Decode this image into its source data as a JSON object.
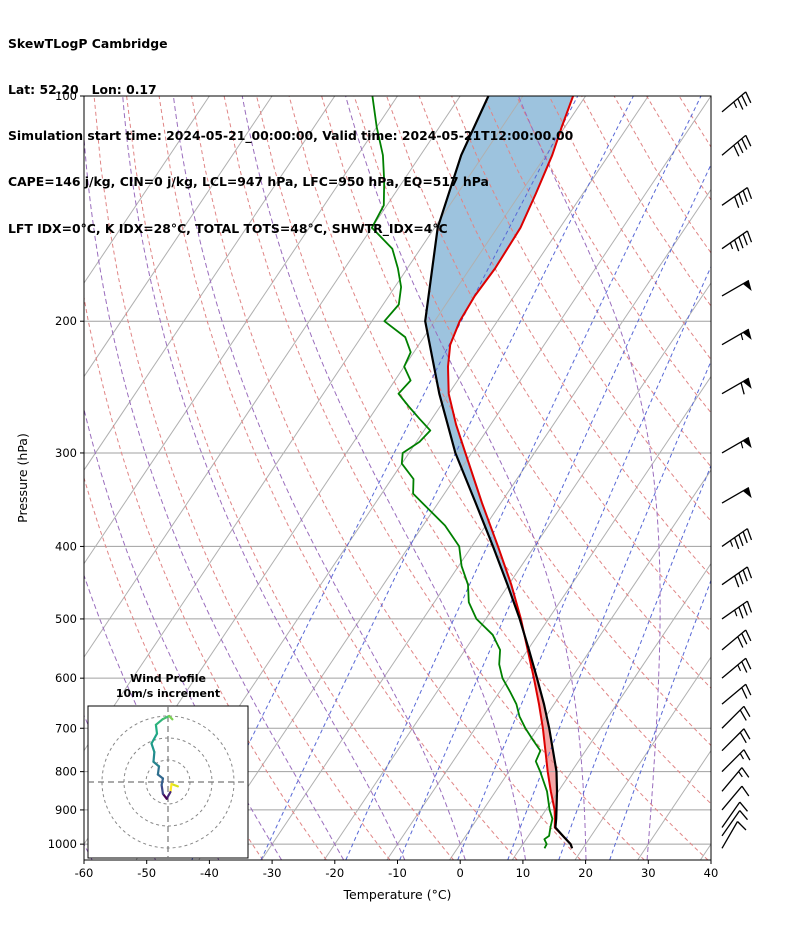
{
  "header": {
    "title": "SkewTLogP Cambridge",
    "location_line": "Lat: 52.20   Lon: 0.17",
    "time_line": "Simulation start time: 2024-05-21_00:00:00, Valid time: 2024-05-21T12:00:00.00",
    "indices_line1": "CAPE=146 j/kg, CIN=0 j/kg, LCL=947 hPa, LFC=950 hPa, EQ=517 hPa",
    "indices_line2": "LFT IDX=0°C, K IDX=28°C, TOTAL TOTS=48°C, SHWTR_IDX=4°C"
  },
  "chart_data": {
    "type": "skewt-logp",
    "station": "Cambridge",
    "lat": 52.2,
    "lon": 0.17,
    "sim_start": "2024-05-21_00:00:00",
    "valid_time": "2024-05-21T12:00:00.00",
    "indices": {
      "cape_j_per_kg": 146,
      "cin_j_per_kg": 0,
      "lcl_hpa": 947,
      "lfc_hpa": 950,
      "eq_hpa": 517,
      "lifted_index_c": 0,
      "k_index_c": 28,
      "total_totals_c": 48,
      "showalter_index_c": 4
    },
    "xlabel": "Temperature (°C)",
    "ylabel": "Pressure (hPa)",
    "x_tick_values": [
      -60,
      -50,
      -40,
      -30,
      -20,
      -10,
      0,
      10,
      20,
      30,
      40
    ],
    "x_tick_labels": [
      "-60",
      "-50",
      "-40",
      "-30",
      "-20",
      "-10",
      "0",
      "10",
      "20",
      "30",
      "40"
    ],
    "y_ticks": [
      100,
      200,
      300,
      400,
      500,
      600,
      700,
      800,
      900,
      1000
    ],
    "pressure_top": 100,
    "pressure_bottom": 1050,
    "temperature_range": [
      -60,
      40
    ],
    "skew_deg_per_decade": 80,
    "temperature_profile": [
      [
        1013,
        18.3
      ],
      [
        1000,
        17.6
      ],
      [
        975,
        15.5
      ],
      [
        950,
        13.3
      ],
      [
        925,
        12.4
      ],
      [
        900,
        11.4
      ],
      [
        850,
        8.8
      ],
      [
        800,
        6.2
      ],
      [
        750,
        3.6
      ],
      [
        700,
        0.8
      ],
      [
        650,
        -2.4
      ],
      [
        600,
        -6.0
      ],
      [
        550,
        -10.0
      ],
      [
        500,
        -14.4
      ],
      [
        450,
        -19.6
      ],
      [
        400,
        -25.8
      ],
      [
        350,
        -33.0
      ],
      [
        300,
        -41.0
      ],
      [
        275,
        -45.5
      ],
      [
        250,
        -50.0
      ],
      [
        230,
        -53.0
      ],
      [
        215,
        -55.0
      ],
      [
        200,
        -56.0
      ],
      [
        185,
        -56.3
      ],
      [
        170,
        -56.0
      ],
      [
        150,
        -56.3
      ],
      [
        135,
        -57.5
      ],
      [
        120,
        -59.0
      ],
      [
        110,
        -60.5
      ],
      [
        100,
        -62.0
      ]
    ],
    "dewpoint_profile": [
      [
        1013,
        13.9
      ],
      [
        1000,
        13.8
      ],
      [
        985,
        12.9
      ],
      [
        975,
        13.3
      ],
      [
        950,
        12.6
      ],
      [
        925,
        12.0
      ],
      [
        900,
        10.6
      ],
      [
        850,
        8.2
      ],
      [
        800,
        5.0
      ],
      [
        775,
        3.2
      ],
      [
        750,
        2.8
      ],
      [
        725,
        0.4
      ],
      [
        700,
        -2.0
      ],
      [
        675,
        -4.2
      ],
      [
        650,
        -6.0
      ],
      [
        625,
        -8.4
      ],
      [
        600,
        -11.0
      ],
      [
        575,
        -13.0
      ],
      [
        550,
        -14.4
      ],
      [
        525,
        -17.2
      ],
      [
        500,
        -21.5
      ],
      [
        475,
        -24.5
      ],
      [
        450,
        -26.5
      ],
      [
        425,
        -29.5
      ],
      [
        400,
        -32.0
      ],
      [
        375,
        -36.5
      ],
      [
        350,
        -42.5
      ],
      [
        340,
        -45.0
      ],
      [
        325,
        -46.5
      ],
      [
        310,
        -50.0
      ],
      [
        300,
        -51.0
      ],
      [
        290,
        -49.5
      ],
      [
        280,
        -49.0
      ],
      [
        270,
        -52.0
      ],
      [
        260,
        -55.0
      ],
      [
        250,
        -58.0
      ],
      [
        240,
        -57.5
      ],
      [
        230,
        -60.0
      ],
      [
        220,
        -60.5
      ],
      [
        210,
        -63.0
      ],
      [
        200,
        -68.0
      ],
      [
        190,
        -67.5
      ],
      [
        180,
        -69.0
      ],
      [
        170,
        -71.5
      ],
      [
        160,
        -74.5
      ],
      [
        150,
        -80.0
      ],
      [
        140,
        -80.5
      ],
      [
        130,
        -83.0
      ],
      [
        120,
        -86.0
      ],
      [
        110,
        -90.0
      ],
      [
        100,
        -94.0
      ]
    ],
    "parcel_profile": [
      [
        1013,
        18.3
      ],
      [
        1000,
        17.6
      ],
      [
        975,
        15.5
      ],
      [
        950,
        13.4
      ],
      [
        925,
        12.6
      ],
      [
        900,
        11.7
      ],
      [
        850,
        9.8
      ],
      [
        800,
        7.6
      ],
      [
        750,
        4.8
      ],
      [
        700,
        1.8
      ],
      [
        650,
        -1.6
      ],
      [
        600,
        -5.5
      ],
      [
        550,
        -9.8
      ],
      [
        500,
        -14.6
      ],
      [
        450,
        -20.2
      ],
      [
        400,
        -26.6
      ],
      [
        350,
        -34.0
      ],
      [
        300,
        -42.6
      ],
      [
        250,
        -51.5
      ],
      [
        200,
        -61.5
      ],
      [
        150,
        -69.5
      ],
      [
        120,
        -73.5
      ],
      [
        100,
        -75.5
      ]
    ],
    "shading_bands": {
      "positive_band": {
        "p_from": 950,
        "p_to": 517
      },
      "negative_band": {
        "p_from": 517,
        "p_to": 100
      }
    },
    "background": {
      "isotherms_c": {
        "start": -120,
        "end": 40,
        "step": 10
      },
      "dry_adiabats_theta_k": {
        "start": 240,
        "end": 450,
        "step": 10
      },
      "moist_adiabats_start_c": {
        "start": -60,
        "end": 30,
        "step": 10
      },
      "mixing_ratio_g_per_kg": [
        0.1,
        0.3,
        1,
        2,
        4,
        7,
        12,
        20
      ]
    },
    "colors": {
      "temperature": "#dd0000",
      "dewpoint": "#008000",
      "parcel": "#000000",
      "isotherm": "#b0b0b0",
      "pressure_grid": "#a0a0a0",
      "dry_adiabat": "#e08585",
      "moist_adiabat": "#9a6dbd",
      "mixing_ratio": "#5868d6",
      "positive_area_fill": "#f4a6a6",
      "negative_area_fill": "#9dc3de",
      "frame": "#000000"
    },
    "wind_barbs_kt": [
      [
        1013,
        10,
        30
      ],
      [
        975,
        10,
        35
      ],
      [
        950,
        12,
        35
      ],
      [
        900,
        12,
        40
      ],
      [
        850,
        15,
        40
      ],
      [
        800,
        15,
        45
      ],
      [
        750,
        18,
        45
      ],
      [
        700,
        18,
        45
      ],
      [
        650,
        20,
        50
      ],
      [
        600,
        25,
        50
      ],
      [
        550,
        30,
        50
      ],
      [
        500,
        35,
        55
      ],
      [
        450,
        40,
        55
      ],
      [
        400,
        45,
        55
      ],
      [
        350,
        50,
        60
      ],
      [
        300,
        55,
        60
      ],
      [
        250,
        60,
        60
      ],
      [
        215,
        55,
        60
      ],
      [
        185,
        50,
        60
      ],
      [
        160,
        45,
        55
      ],
      [
        140,
        40,
        55
      ],
      [
        120,
        40,
        50
      ],
      [
        105,
        35,
        50
      ]
    ],
    "hodograph": {
      "title": "Wind Profile",
      "subtitle": "10m/s increment",
      "ring_interval_ms": 10,
      "rings_ms": [
        10,
        20,
        30
      ],
      "trace_uv_ms": [
        [
          4.5,
          -2.0
        ],
        [
          1.6,
          -0.9
        ],
        [
          1.1,
          -4.6
        ],
        [
          -0.6,
          -7.6
        ],
        [
          -2.3,
          -5.4
        ],
        [
          -2.9,
          -1.4
        ],
        [
          -2.3,
          1.6
        ],
        [
          -4.6,
          3.4
        ],
        [
          -4.1,
          7.1
        ],
        [
          -6.6,
          9.2
        ],
        [
          -6.2,
          13.6
        ],
        [
          -7.5,
          17.5
        ],
        [
          -5.0,
          22.0
        ],
        [
          -5.5,
          26.0
        ],
        [
          -2.5,
          28.5
        ],
        [
          0.5,
          30.0
        ],
        [
          2.0,
          28.5
        ]
      ],
      "segment_colors": [
        "#d8e219",
        "#fde725",
        "#482878",
        "#440154",
        "#3e4989",
        "#355f8d",
        "#31688e",
        "#2d708e",
        "#28838e",
        "#23898e",
        "#1f978b",
        "#1fa287",
        "#21ad83",
        "#2eb37c",
        "#44bf70",
        "#7ad151"
      ]
    }
  }
}
